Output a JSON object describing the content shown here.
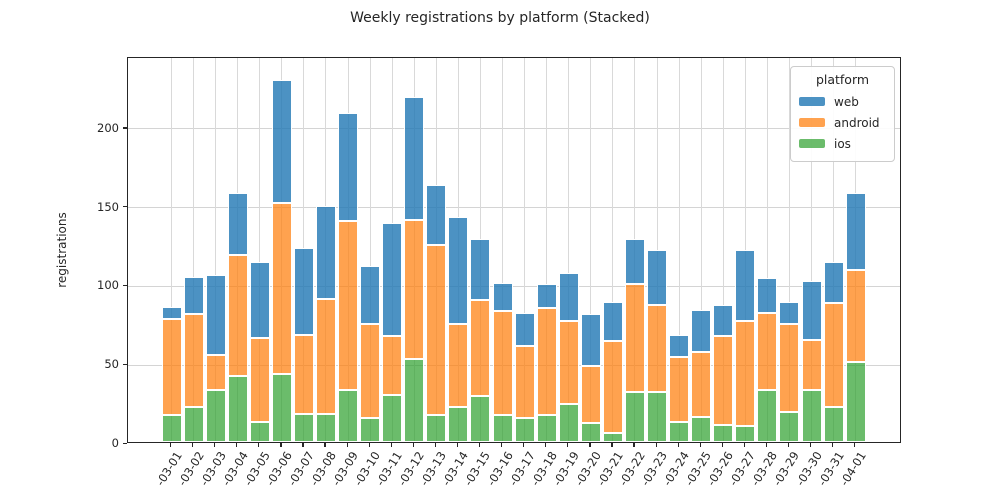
{
  "title": "Weekly registrations by platform (Stacked)",
  "ylabel": "registrations",
  "legend": {
    "title": "platform",
    "entries": [
      {
        "label": "web",
        "color": "rgba(31,119,180,0.8)"
      },
      {
        "label": "android",
        "color": "rgba(255,127,14,0.73)"
      },
      {
        "label": "ios",
        "color": "rgba(44,160,44,0.7)"
      }
    ]
  },
  "chart_data": {
    "type": "bar",
    "stacked": true,
    "title": "Weekly registrations by platform (Stacked)",
    "xlabel": "",
    "ylabel": "registrations",
    "ylim": [
      0,
      245
    ],
    "yticks": [
      0,
      50,
      100,
      150,
      200
    ],
    "grid": true,
    "legend_position": "upper right",
    "categories": [
      "-03-01",
      "-03-02",
      "-03-03",
      "-03-04",
      "-03-05",
      "-03-06",
      "-03-07",
      "-03-08",
      "-03-09",
      "-03-10",
      "-03-11",
      "-03-12",
      "-03-13",
      "-03-14",
      "-03-15",
      "-03-16",
      "-03-17",
      "-03-18",
      "-03-19",
      "-03-20",
      "-03-21",
      "-03-22",
      "-03-23",
      "-03-24",
      "-03-25",
      "-03-26",
      "-03-27",
      "-03-28",
      "-03-29",
      "-03-30",
      "-03-31",
      "-04-01"
    ],
    "series": [
      {
        "name": "ios",
        "color": "rgba(44,160,44,0.7)",
        "values": [
          17,
          22,
          33,
          42,
          13,
          43,
          18,
          18,
          33,
          15,
          30,
          53,
          17,
          22,
          29,
          17,
          15,
          17,
          24,
          12,
          6,
          32,
          32,
          13,
          16,
          11,
          10,
          33,
          19,
          33,
          22,
          51
        ]
      },
      {
        "name": "android",
        "color": "rgba(255,127,14,0.73)",
        "values": [
          61,
          59,
          22,
          77,
          53,
          109,
          50,
          73,
          107,
          60,
          37,
          88,
          108,
          53,
          61,
          66,
          46,
          68,
          53,
          36,
          58,
          68,
          55,
          41,
          41,
          56,
          67,
          49,
          56,
          32,
          66,
          58
        ]
      },
      {
        "name": "web",
        "color": "rgba(31,119,180,0.8)",
        "values": [
          8,
          24,
          51,
          39,
          48,
          78,
          55,
          59,
          69,
          37,
          72,
          78,
          38,
          68,
          39,
          18,
          21,
          15,
          30,
          33,
          25,
          29,
          35,
          14,
          27,
          20,
          45,
          22,
          14,
          37,
          26,
          49
        ]
      }
    ],
    "totals": [
      86,
      105,
      106,
      158,
      114,
      230,
      123,
      150,
      209,
      112,
      139,
      219,
      163,
      143,
      129,
      101,
      82,
      100,
      107,
      81,
      89,
      129,
      122,
      68,
      84,
      87,
      122,
      104,
      89,
      102,
      114,
      158
    ]
  }
}
